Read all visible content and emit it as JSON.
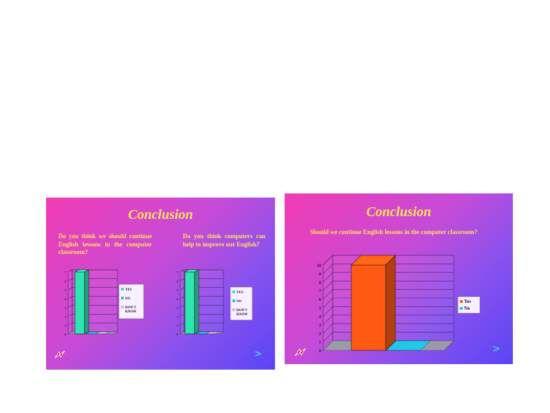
{
  "slides": [
    {
      "title": "Conclusion",
      "questions": [
        "Do you think we should continue English lessons in the computer classroom?",
        "Do you think computers can help to improve our English?"
      ],
      "icons": [
        "logo-icon",
        "next-arrow-icon"
      ]
    },
    {
      "title": "Conclusion",
      "questions": [
        "Should we continue English lessons in the computer classroom?"
      ],
      "icons": [
        "logo-icon",
        "next-arrow-icon"
      ]
    }
  ],
  "colors": {
    "background_pink": "#f23cb4",
    "background_purple": "#8a52ee",
    "background_blue": "#5a44f5",
    "title_yellow": "#ffe45a",
    "bar_green": "#2fe6b2",
    "bar_orange": "#ff5a14",
    "bar_cyan": "#20c8e6",
    "floor_gray": "#9a9aa8",
    "legend_bg": "#f8f0ff",
    "arrow_cyan": "#38d3ff"
  },
  "chart_data": [
    {
      "type": "bar",
      "categories": [
        ""
      ],
      "series": [
        {
          "name": "YES",
          "values": [
            7
          ]
        },
        {
          "name": "NO",
          "values": [
            0
          ]
        },
        {
          "name": "DON'T KNOW",
          "values": [
            0
          ]
        }
      ],
      "yticks": [
        "0",
        "1",
        "2",
        "3",
        "4",
        "5",
        "6",
        "7"
      ],
      "ylim": [
        0,
        7
      ],
      "grid": true,
      "legend_position": "right",
      "three_d": true
    },
    {
      "type": "bar",
      "categories": [
        ""
      ],
      "series": [
        {
          "name": "YES",
          "values": [
            7
          ]
        },
        {
          "name": "NO",
          "values": [
            0
          ]
        },
        {
          "name": "DON'T KNOW",
          "values": [
            0
          ]
        }
      ],
      "yticks": [
        "0",
        "1",
        "2",
        "3",
        "4",
        "5",
        "6",
        "7"
      ],
      "ylim": [
        0,
        7
      ],
      "grid": true,
      "legend_position": "right",
      "three_d": true
    },
    {
      "type": "bar",
      "categories": [
        ""
      ],
      "series": [
        {
          "name": "Yes",
          "values": [
            10
          ]
        },
        {
          "name": "No",
          "values": [
            0
          ]
        }
      ],
      "yticks": [
        "0",
        "1",
        "2",
        "3",
        "4",
        "5",
        "6",
        "7",
        "8",
        "9",
        "10"
      ],
      "ylim": [
        0,
        10
      ],
      "grid": true,
      "legend_position": "right",
      "three_d": true
    }
  ]
}
